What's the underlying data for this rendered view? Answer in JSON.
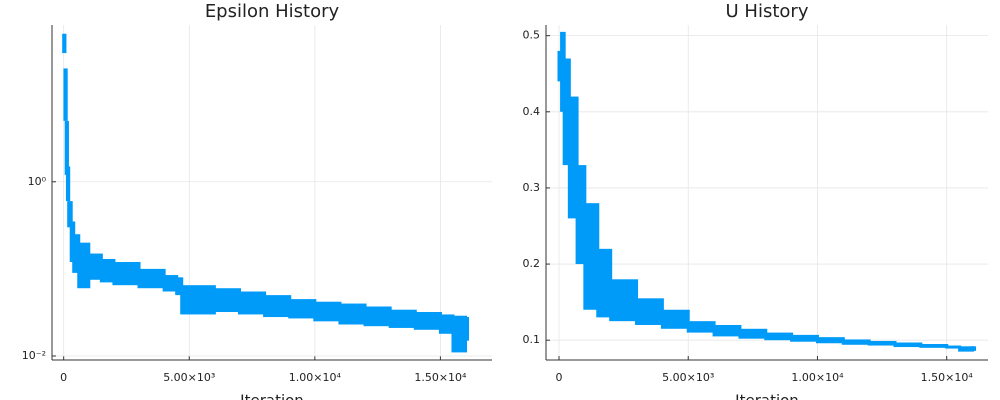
{
  "chart_data": [
    {
      "type": "band",
      "title": "Epsilon History",
      "xlabel": "Iteration",
      "color": "#009af9",
      "log_y": true,
      "grid": true,
      "x": [
        0,
        50,
        100,
        150,
        200,
        300,
        400,
        600,
        1000,
        1500,
        2000,
        3000,
        4000,
        4500,
        4700,
        6000,
        7000,
        8000,
        9000,
        10000,
        11000,
        12000,
        13000,
        14000,
        15000,
        15500,
        16000
      ],
      "high": [
        50,
        20,
        5,
        1.5,
        0.6,
        0.35,
        0.25,
        0.2,
        0.15,
        0.13,
        0.12,
        0.1,
        0.085,
        0.08,
        0.065,
        0.06,
        0.055,
        0.05,
        0.045,
        0.042,
        0.04,
        0.037,
        0.034,
        0.032,
        0.03,
        0.029,
        0.028
      ],
      "low": [
        30,
        5,
        1.2,
        0.6,
        0.3,
        0.12,
        0.09,
        0.06,
        0.075,
        0.07,
        0.065,
        0.06,
        0.055,
        0.05,
        0.03,
        0.032,
        0.03,
        0.028,
        0.027,
        0.025,
        0.023,
        0.022,
        0.021,
        0.02,
        0.018,
        0.011,
        0.015
      ],
      "xlim": [
        -465,
        17054
      ],
      "ylim": [
        0.009,
        63
      ],
      "xticks": [
        0,
        {
          "value": 5000,
          "label": "5.00×10³"
        },
        {
          "value": 10000,
          "label": "1.00×10⁴"
        },
        {
          "value": 15000,
          "label": "1.50×10⁴"
        }
      ],
      "yticks": [
        {
          "value": 0.01,
          "label": "10⁻²"
        },
        {
          "value": 1,
          "label": "10⁰"
        }
      ]
    },
    {
      "type": "band",
      "title": "U History",
      "xlabel": "Iteration",
      "color": "#009af9",
      "log_y": false,
      "grid": true,
      "x": [
        0,
        100,
        200,
        400,
        700,
        1000,
        1500,
        2000,
        3000,
        4000,
        5000,
        6000,
        7000,
        8000,
        9000,
        10000,
        11000,
        12000,
        13000,
        14000,
        15000,
        15500,
        16000
      ],
      "high": [
        0.48,
        0.505,
        0.47,
        0.42,
        0.33,
        0.28,
        0.22,
        0.18,
        0.155,
        0.14,
        0.125,
        0.12,
        0.115,
        0.11,
        0.107,
        0.104,
        0.101,
        0.099,
        0.097,
        0.095,
        0.093,
        0.092,
        0.092
      ],
      "low": [
        0.44,
        0.4,
        0.33,
        0.26,
        0.2,
        0.14,
        0.13,
        0.125,
        0.12,
        0.115,
        0.11,
        0.105,
        0.102,
        0.1,
        0.098,
        0.096,
        0.094,
        0.093,
        0.091,
        0.09,
        0.089,
        0.085,
        0.086
      ],
      "xlim": [
        -503,
        16598
      ],
      "ylim": [
        0.074,
        0.514
      ],
      "xticks": [
        0,
        {
          "value": 5000,
          "label": "5.00×10³"
        },
        {
          "value": 10000,
          "label": "1.00×10⁴"
        },
        {
          "value": 15000,
          "label": "1.50×10⁴"
        }
      ],
      "yticks": [
        0.1,
        0.2,
        0.3,
        0.4,
        0.5
      ]
    }
  ]
}
